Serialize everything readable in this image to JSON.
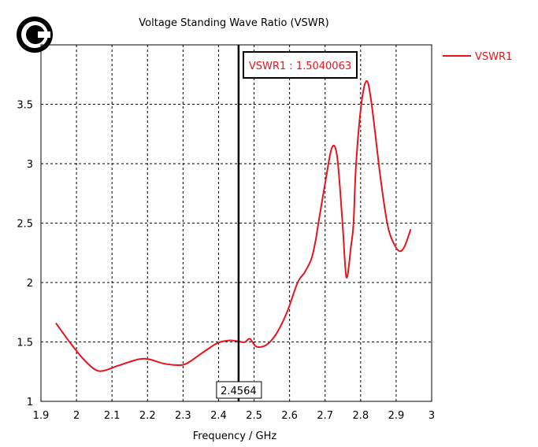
{
  "chart_data": {
    "type": "line",
    "title": "Voltage Standing Wave Ratio (VSWR)",
    "xlabel": "Frequency / GHz",
    "ylabel": "",
    "xlim": [
      1.9,
      3.0
    ],
    "ylim": [
      1,
      4
    ],
    "xticks": [
      1.9,
      2.0,
      2.1,
      2.2,
      2.3,
      2.4,
      2.5,
      2.6,
      2.7,
      2.8,
      2.9,
      3.0
    ],
    "xtick_labels": [
      "1.9",
      "2",
      "2.1",
      "2.2",
      "2.3",
      "2.4",
      "2.5",
      "2.6",
      "2.7",
      "2.8",
      "2.9",
      "3"
    ],
    "yticks": [
      1,
      1.5,
      2,
      2.5,
      3,
      3.5
    ],
    "ytick_labels": [
      "1",
      "1.5",
      "2",
      "2.5",
      "3",
      "3.5"
    ],
    "grid": true,
    "legend_position": "right-outside-top",
    "series": [
      {
        "name": "VSWR1",
        "color": "#e8141c",
        "x": [
          1.942,
          1.981,
          2.02,
          2.054,
          2.078,
          2.117,
          2.175,
          2.204,
          2.243,
          2.282,
          2.311,
          2.36,
          2.399,
          2.433,
          2.457,
          2.474,
          2.488,
          2.504,
          2.52,
          2.54,
          2.564,
          2.593,
          2.622,
          2.642,
          2.661,
          2.673,
          2.681,
          2.7,
          2.719,
          2.734,
          2.749,
          2.76,
          2.773,
          2.78,
          2.787,
          2.802,
          2.817,
          2.831,
          2.856,
          2.875,
          2.89,
          2.909,
          2.924,
          2.941
        ],
        "y": [
          1.659,
          1.498,
          1.354,
          1.265,
          1.259,
          1.3,
          1.354,
          1.354,
          1.32,
          1.305,
          1.32,
          1.42,
          1.493,
          1.513,
          1.504,
          1.498,
          1.527,
          1.465,
          1.458,
          1.487,
          1.575,
          1.752,
          1.996,
          2.084,
          2.195,
          2.35,
          2.5,
          2.833,
          3.133,
          3.056,
          2.5,
          2.044,
          2.305,
          2.5,
          2.989,
          3.5,
          3.696,
          3.5,
          2.878,
          2.5,
          2.35,
          2.265,
          2.305,
          2.449
        ]
      }
    ],
    "marker": {
      "x": 2.4564,
      "x_label": "2.4564",
      "readout": "VSWR1 : 1.5040063"
    }
  },
  "logo": {
    "icon": "copyright-c-logo",
    "color": "#000000"
  }
}
